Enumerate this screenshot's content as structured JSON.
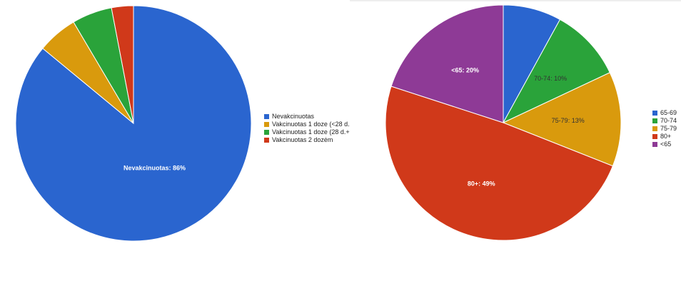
{
  "chart_data": [
    {
      "type": "pie",
      "categories": [
        "Nevakcinuotas",
        "Vakcinuotas 1 doze (<28 d.",
        "Vakcinuotas 1 doze (28 d.+",
        "Vakcinuotas 2 dozėm"
      ],
      "values": [
        86,
        5.5,
        5.5,
        3
      ],
      "colors": [
        "#2a65cf",
        "#d99a0d",
        "#2aa33a",
        "#d0391a"
      ],
      "data_labels": [
        "Nevakcinuotas: 86%",
        "",
        "",
        ""
      ],
      "label_colors": [
        "#ffffff",
        "#ffffff",
        "#ffffff",
        "#ffffff"
      ],
      "legend": "right"
    },
    {
      "type": "pie",
      "categories": [
        "65-69",
        "70-74",
        "75-79",
        "80+",
        "<65"
      ],
      "values": [
        8,
        10,
        13,
        49,
        20
      ],
      "colors": [
        "#2a65cf",
        "#2aa33a",
        "#d99a0d",
        "#d0391a",
        "#8e3a96"
      ],
      "data_labels": [
        "",
        "70-74: 10%",
        "75-79: 13%",
        "80+: 49%",
        "<65: 20%"
      ],
      "label_colors": [
        "#ffffff",
        "#333333",
        "#333333",
        "#ffffff",
        "#ffffff"
      ],
      "legend": "right"
    }
  ]
}
